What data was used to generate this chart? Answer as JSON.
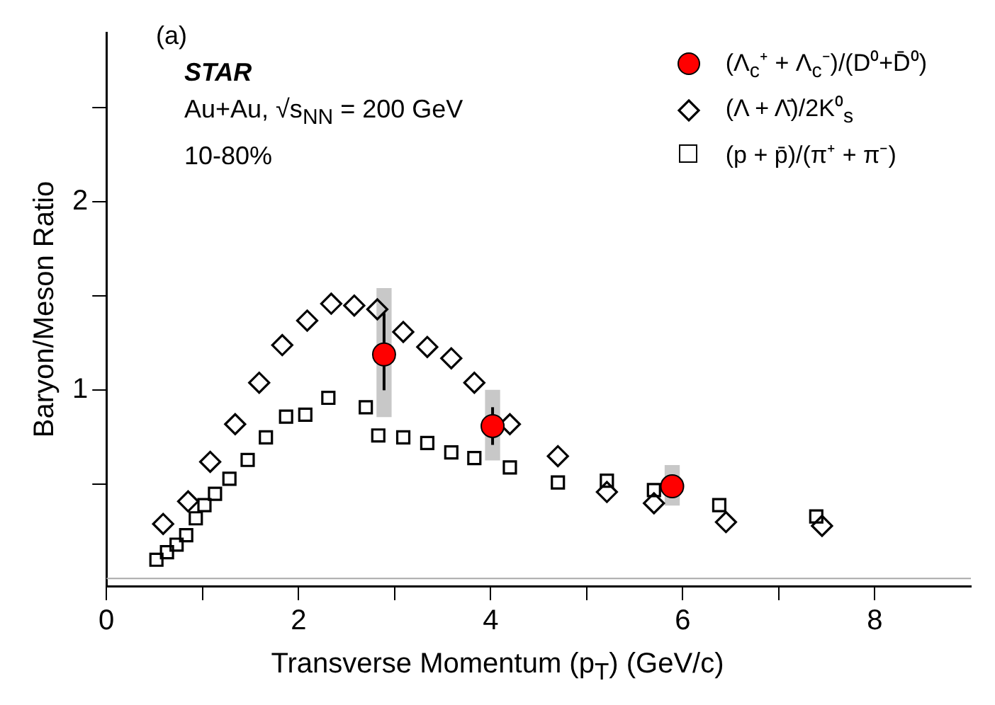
{
  "chart_data": {
    "type": "scatter",
    "xlabel": "Transverse Momentum (p$_{T}$) (GeV/c)",
    "ylabel": "Baryon/Meson Ratio",
    "annotations": [
      "(a)",
      "STAR",
      "Au+Au, √s$_{NN}$ = 200 GeV",
      "10-80%"
    ],
    "xlim": [
      0,
      9
    ],
    "xticks": [
      0,
      {
        "value": 1,
        "label": null
      },
      2,
      {
        "value": 3,
        "label": null
      },
      4,
      {
        "value": 5,
        "label": null
      },
      6,
      {
        "value": 7,
        "label": null
      },
      8
    ],
    "ylim": [
      -0.04,
      2.9
    ],
    "yticks": [
      {
        "value": 0.5,
        "label": null
      },
      1,
      {
        "value": 1.5,
        "label": null
      },
      2,
      {
        "value": 2.5,
        "label": null
      }
    ],
    "grid": false,
    "legend": "top right",
    "ref_lines": [
      {
        "axis": "y",
        "value": 0,
        "color": "#aaaaaa"
      }
    ],
    "series": [
      {
        "name": "(Λ$_{c}$⁺ + Λ$_{c}$⁻)/(D⁰+D̄⁰)",
        "color": "#ff0000",
        "marker": "circle",
        "x": [
          2.89,
          4.02,
          5.89
        ],
        "values": [
          1.19,
          0.81,
          0.49
        ],
        "errors": [
          [
            1.0,
            1.41
          ],
          [
            0.71,
            0.91
          ],
          [
            0.43,
            0.55
          ]
        ]
      },
      {
        "type": "bar",
        "color": "#c8c8c8",
        "x": [
          2.89,
          4.02,
          5.89
        ],
        "base": [
          0.86,
          0.63,
          0.39
        ],
        "values": [
          0.68,
          0.37,
          0.21
        ]
      },
      {
        "name": "(Λ + Λ̄)/2K⁰$_{s}$",
        "color": "#000000",
        "marker": "diamond",
        "x": [
          0.59,
          0.85,
          1.08,
          1.34,
          1.59,
          1.83,
          2.09,
          2.34,
          2.58,
          2.82,
          3.09,
          3.34,
          3.59,
          3.83,
          4.2,
          4.7,
          5.21,
          5.7,
          6.45,
          7.45
        ],
        "values": [
          0.29,
          0.41,
          0.62,
          0.82,
          1.04,
          1.24,
          1.37,
          1.46,
          1.45,
          1.43,
          1.31,
          1.23,
          1.17,
          1.04,
          0.82,
          0.65,
          0.46,
          0.4,
          0.3,
          0.28
        ]
      },
      {
        "name": "(p + p̄)/(π⁺ + π⁻)",
        "color": "#000000",
        "marker": "square",
        "x": [
          0.52,
          0.63,
          0.73,
          0.83,
          0.93,
          1.02,
          1.13,
          1.28,
          1.47,
          1.66,
          1.87,
          2.07,
          2.31,
          2.7,
          2.83,
          3.09,
          3.34,
          3.59,
          3.83,
          4.2,
          4.7,
          5.21,
          5.7,
          6.38,
          7.39
        ],
        "values": [
          0.1,
          0.14,
          0.18,
          0.23,
          0.32,
          0.39,
          0.45,
          0.53,
          0.63,
          0.75,
          0.86,
          0.87,
          0.96,
          0.91,
          0.76,
          0.75,
          0.72,
          0.67,
          0.64,
          0.59,
          0.51,
          0.52,
          0.47,
          0.39,
          0.33
        ]
      }
    ]
  }
}
